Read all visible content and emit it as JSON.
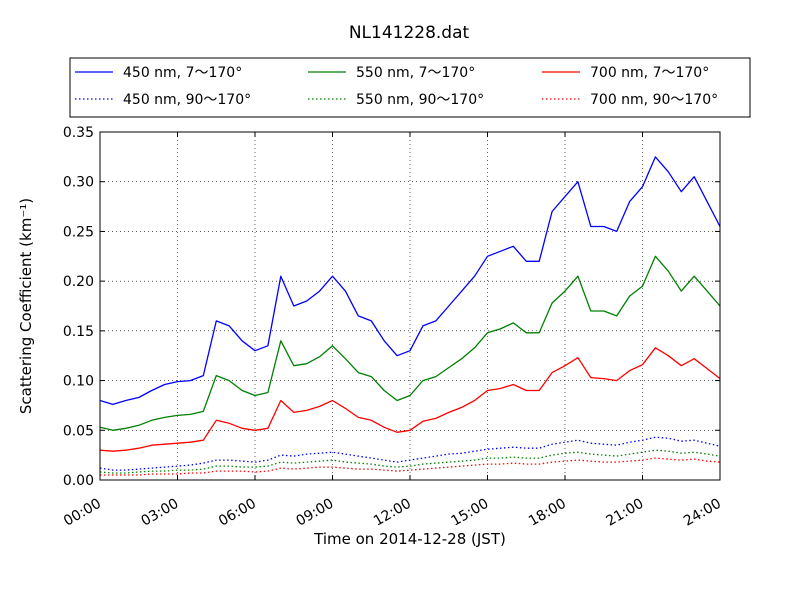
{
  "chart_data": {
    "type": "line",
    "title": "NL141228.dat",
    "xlabel": "Time on 2014-12-28 (JST)",
    "ylabel": "Scattering Coefficient (km⁻¹)",
    "xlim_hours": [
      0,
      24
    ],
    "ylim": [
      0,
      0.35
    ],
    "x_ticks": [
      {
        "hour": 0,
        "label": "00:00"
      },
      {
        "hour": 3,
        "label": "03:00"
      },
      {
        "hour": 6,
        "label": "06:00"
      },
      {
        "hour": 9,
        "label": "09:00"
      },
      {
        "hour": 12,
        "label": "12:00"
      },
      {
        "hour": 15,
        "label": "15:00"
      },
      {
        "hour": 18,
        "label": "18:00"
      },
      {
        "hour": 21,
        "label": "21:00"
      },
      {
        "hour": 24,
        "label": "24:00"
      }
    ],
    "y_ticks": [
      {
        "value": 0,
        "label": "0.00"
      },
      {
        "value": 0.05,
        "label": "0.05"
      },
      {
        "value": 0.1,
        "label": "0.10"
      },
      {
        "value": 0.15,
        "label": "0.15"
      },
      {
        "value": 0.2,
        "label": "0.20"
      },
      {
        "value": 0.25,
        "label": "0.25"
      },
      {
        "value": 0.3,
        "label": "0.30"
      },
      {
        "value": 0.35,
        "label": "0.35"
      }
    ],
    "grid": true,
    "legend_position": "top, above plot, 3 columns",
    "x_hours": [
      0,
      0.5,
      1,
      1.5,
      2,
      2.5,
      3,
      3.5,
      4,
      4.5,
      5,
      5.5,
      6,
      6.5,
      7,
      7.5,
      8,
      8.5,
      9,
      9.5,
      10,
      10.5,
      11,
      11.5,
      12,
      12.5,
      13,
      13.5,
      14,
      14.5,
      15,
      15.5,
      16,
      16.5,
      17,
      17.5,
      18,
      18.5,
      19,
      19.5,
      20,
      20.5,
      21,
      21.5,
      22,
      22.5,
      23,
      23.5,
      24
    ],
    "series": [
      {
        "name": "450 nm, 7～170°",
        "color": "#0000ff",
        "style": "solid",
        "values": [
          0.08,
          0.076,
          0.08,
          0.083,
          0.09,
          0.096,
          0.099,
          0.1,
          0.105,
          0.16,
          0.155,
          0.14,
          0.13,
          0.135,
          0.205,
          0.175,
          0.18,
          0.19,
          0.205,
          0.19,
          0.165,
          0.16,
          0.14,
          0.125,
          0.13,
          0.155,
          0.16,
          0.175,
          0.19,
          0.205,
          0.225,
          0.23,
          0.235,
          0.22,
          0.22,
          0.27,
          0.285,
          0.3,
          0.255,
          0.255,
          0.25,
          0.28,
          0.295,
          0.325,
          0.31,
          0.29,
          0.305,
          0.28,
          0.255
        ]
      },
      {
        "name": "450 nm, 90～170°",
        "color": "#0000ff",
        "style": "dotted",
        "values": [
          0.012,
          0.01,
          0.01,
          0.011,
          0.012,
          0.013,
          0.014,
          0.015,
          0.017,
          0.02,
          0.02,
          0.019,
          0.018,
          0.02,
          0.025,
          0.024,
          0.026,
          0.027,
          0.028,
          0.026,
          0.024,
          0.022,
          0.02,
          0.018,
          0.02,
          0.022,
          0.024,
          0.026,
          0.027,
          0.029,
          0.031,
          0.032,
          0.033,
          0.032,
          0.032,
          0.036,
          0.038,
          0.04,
          0.037,
          0.036,
          0.035,
          0.038,
          0.04,
          0.043,
          0.042,
          0.039,
          0.04,
          0.037,
          0.034
        ]
      },
      {
        "name": "550 nm, 7～170°",
        "color": "#008000",
        "style": "solid",
        "values": [
          0.053,
          0.05,
          0.052,
          0.055,
          0.06,
          0.063,
          0.065,
          0.066,
          0.069,
          0.105,
          0.1,
          0.09,
          0.085,
          0.088,
          0.14,
          0.115,
          0.117,
          0.124,
          0.135,
          0.122,
          0.108,
          0.104,
          0.09,
          0.08,
          0.085,
          0.1,
          0.104,
          0.113,
          0.122,
          0.133,
          0.148,
          0.152,
          0.158,
          0.148,
          0.148,
          0.178,
          0.19,
          0.205,
          0.17,
          0.17,
          0.165,
          0.185,
          0.195,
          0.225,
          0.21,
          0.19,
          0.205,
          0.19,
          0.175
        ]
      },
      {
        "name": "550 nm, 90～170°",
        "color": "#008000",
        "style": "dotted",
        "values": [
          0.008,
          0.007,
          0.007,
          0.008,
          0.009,
          0.009,
          0.01,
          0.01,
          0.011,
          0.014,
          0.014,
          0.013,
          0.013,
          0.014,
          0.018,
          0.017,
          0.018,
          0.019,
          0.02,
          0.018,
          0.017,
          0.016,
          0.014,
          0.013,
          0.014,
          0.016,
          0.017,
          0.018,
          0.019,
          0.02,
          0.022,
          0.022,
          0.023,
          0.022,
          0.022,
          0.025,
          0.027,
          0.028,
          0.026,
          0.025,
          0.024,
          0.026,
          0.028,
          0.03,
          0.029,
          0.027,
          0.028,
          0.026,
          0.024
        ]
      },
      {
        "name": "700 nm, 7～170°",
        "color": "#ff0000",
        "style": "solid",
        "values": [
          0.03,
          0.029,
          0.03,
          0.032,
          0.035,
          0.036,
          0.037,
          0.038,
          0.04,
          0.06,
          0.057,
          0.052,
          0.05,
          0.052,
          0.08,
          0.068,
          0.07,
          0.074,
          0.08,
          0.072,
          0.063,
          0.06,
          0.053,
          0.048,
          0.05,
          0.059,
          0.062,
          0.068,
          0.073,
          0.08,
          0.09,
          0.092,
          0.096,
          0.09,
          0.09,
          0.108,
          0.115,
          0.123,
          0.103,
          0.102,
          0.1,
          0.11,
          0.116,
          0.133,
          0.125,
          0.115,
          0.122,
          0.112,
          0.102
        ]
      },
      {
        "name": "700 nm, 90～170°",
        "color": "#ff0000",
        "style": "dotted",
        "values": [
          0.005,
          0.005,
          0.005,
          0.005,
          0.006,
          0.006,
          0.006,
          0.007,
          0.007,
          0.009,
          0.009,
          0.009,
          0.008,
          0.009,
          0.012,
          0.011,
          0.012,
          0.013,
          0.013,
          0.012,
          0.011,
          0.011,
          0.01,
          0.009,
          0.01,
          0.011,
          0.012,
          0.013,
          0.014,
          0.015,
          0.016,
          0.016,
          0.017,
          0.016,
          0.016,
          0.018,
          0.019,
          0.02,
          0.019,
          0.018,
          0.018,
          0.019,
          0.02,
          0.022,
          0.021,
          0.02,
          0.021,
          0.019,
          0.018
        ]
      }
    ]
  }
}
